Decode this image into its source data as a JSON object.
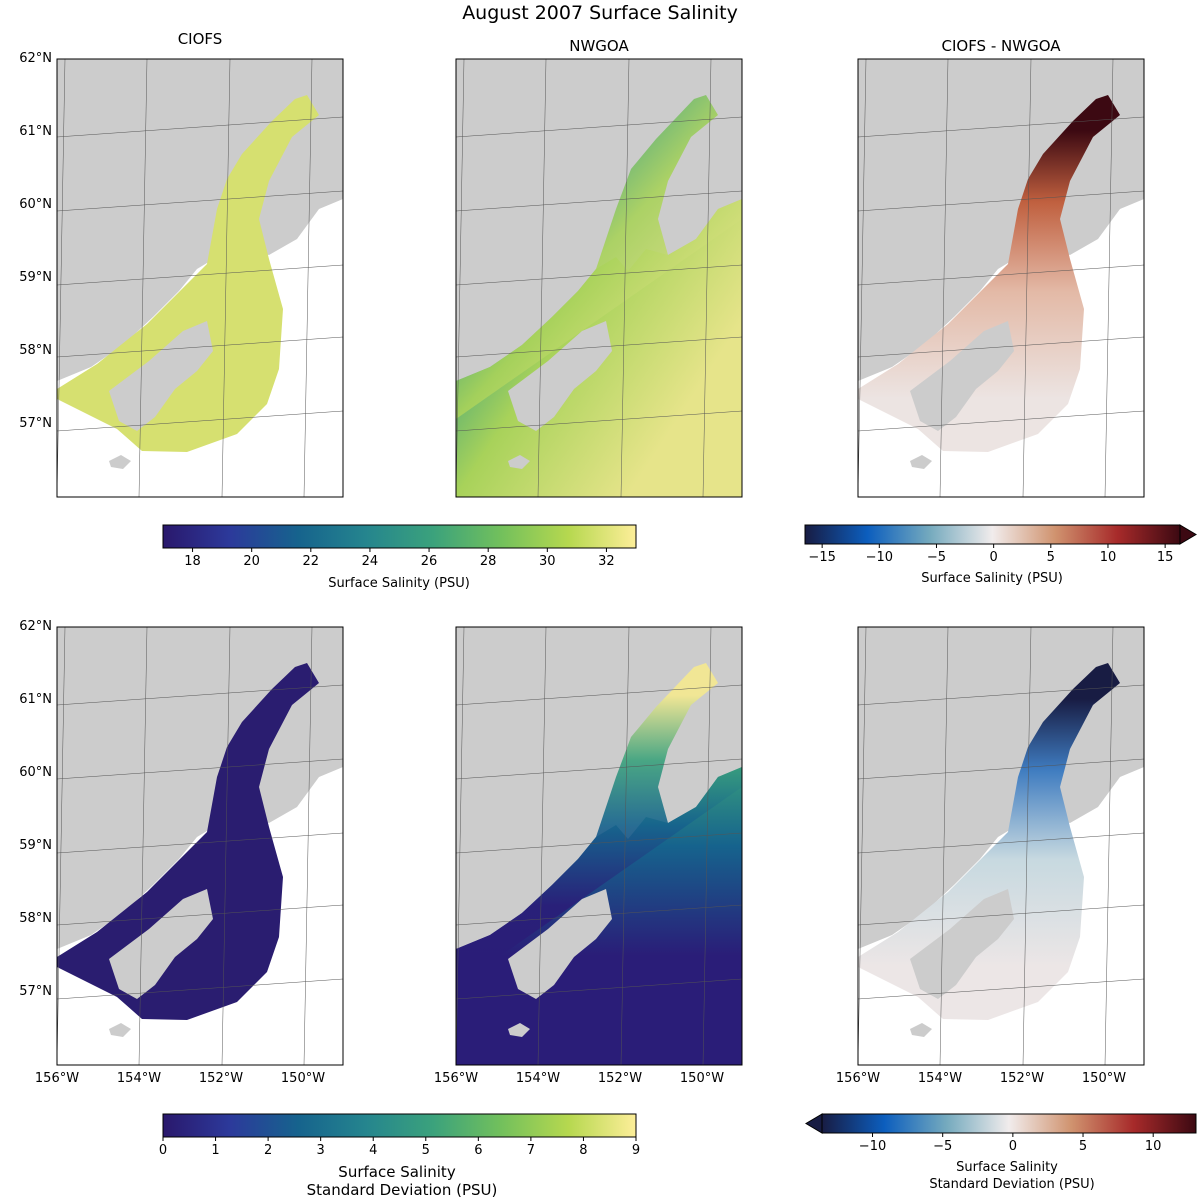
{
  "title": "August 2007 Surface Salinity",
  "panels": {
    "ciofs_title": "CIOFS",
    "nwgoa_title": "NWGOA",
    "diff_title": "CIOFS - NWGOA"
  },
  "lat_ticks": [
    "62°N",
    "61°N",
    "60°N",
    "59°N",
    "58°N",
    "57°N"
  ],
  "lon_ticks": [
    "156°W",
    "154°W",
    "152°W",
    "150°W"
  ],
  "colorbars": {
    "mean": {
      "label": "Surface Salinity (PSU)",
      "range": [
        17,
        33
      ],
      "ticks": [
        "18",
        "20",
        "22",
        "24",
        "26",
        "28",
        "30",
        "32"
      ],
      "colormap": "haline",
      "extend": "neither"
    },
    "mean_diff": {
      "label": "Surface Salinity (PSU)",
      "range": [
        -16.5,
        16.3
      ],
      "ticks": [
        "−15",
        "−10",
        "−5",
        "0",
        "5",
        "10",
        "15"
      ],
      "colormap": "balance",
      "extend": "max"
    },
    "std": {
      "label_line1": "Surface Salinity",
      "label_line2": "Standard Deviation (PSU)",
      "range": [
        0,
        9
      ],
      "ticks": [
        "0",
        "1",
        "2",
        "3",
        "4",
        "5",
        "6",
        "7",
        "8",
        "9"
      ],
      "colormap": "haline",
      "extend": "neither"
    },
    "std_diff": {
      "label_line1": "Surface Salinity",
      "label_line2": "Standard Deviation (PSU)",
      "range": [
        -13.6,
        13.05
      ],
      "ticks": [
        "−10",
        "−5",
        "0",
        "5",
        "10"
      ],
      "colormap": "balance",
      "extend": "min"
    }
  },
  "colors": {
    "land": "#cccccc",
    "haline": [
      "#2a186c",
      "#2c3a9b",
      "#16638d",
      "#25858e",
      "#3ba27c",
      "#72c05c",
      "#b6d84f",
      "#fdee99"
    ],
    "balance": [
      "#181c43",
      "#0c5ebe",
      "#75aabe",
      "#f1ecec",
      "#d0936f",
      "#a72a2a",
      "#3c0912"
    ]
  }
}
